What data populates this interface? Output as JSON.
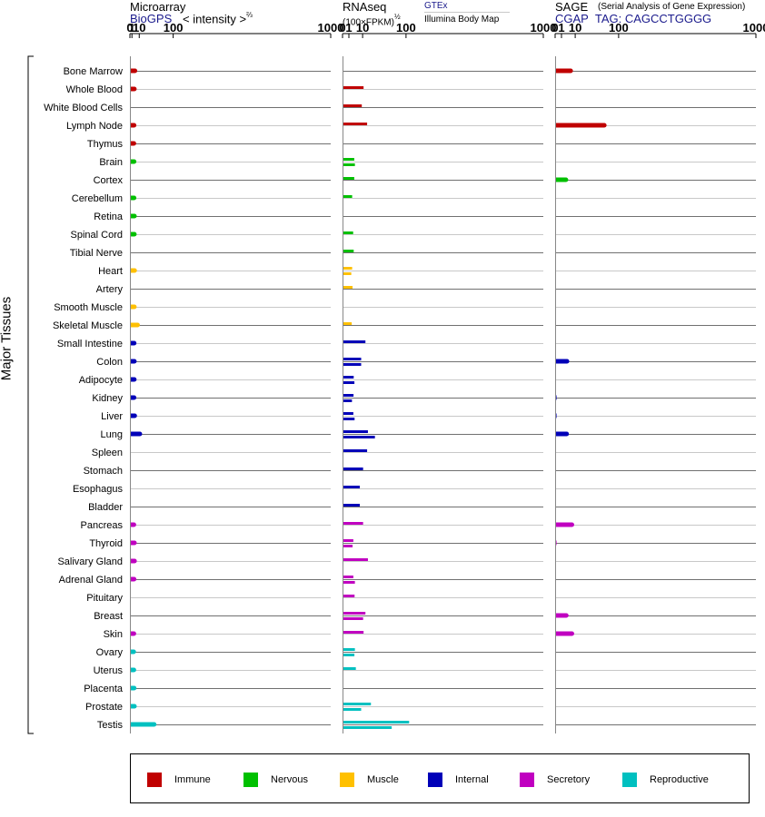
{
  "headers": {
    "microarray": {
      "title": "Microarray",
      "source": "BioGPS",
      "metric_pre": "< intensity >",
      "metric_exp": "⅔"
    },
    "rnaseq": {
      "title": "RNAseq",
      "metric_pre": "(100×FPKM)",
      "metric_exp": "½",
      "source1": "GTEx",
      "source2": "Illumina Body Map"
    },
    "sage": {
      "title": "SAGE",
      "subtitle": "(Serial Analysis of Gene Expression)",
      "source": "CGAP",
      "tag": "TAG: CAGCCTGGGG"
    }
  },
  "y_axis_label": "Major Tissues",
  "legend": [
    {
      "label": "Immune",
      "color": "#c00000"
    },
    {
      "label": "Nervous",
      "color": "#00c000"
    },
    {
      "label": "Muscle",
      "color": "#ffc000"
    },
    {
      "label": "Internal",
      "color": "#0000b8"
    },
    {
      "label": "Secretory",
      "color": "#c000c0"
    },
    {
      "label": "Reproductive",
      "color": "#00c0c0"
    }
  ],
  "chart_data": {
    "type": "bar",
    "orientation": "horizontal",
    "grid": true,
    "panels": [
      {
        "id": "microarray",
        "x_ticks": [
          0,
          1,
          10,
          100,
          1000
        ],
        "xlim": [
          0,
          1000
        ]
      },
      {
        "id": "rnaseq",
        "x_ticks": [
          0,
          1,
          10,
          100,
          1000
        ],
        "xlim": [
          0,
          1000
        ]
      },
      {
        "id": "sage",
        "x_ticks": [
          0,
          1,
          10,
          100,
          1000
        ],
        "xlim": [
          0,
          1000
        ]
      }
    ],
    "tissues": [
      {
        "name": "Bone Marrow",
        "group": "Immune",
        "microarray": 4.0,
        "rnaseq": [],
        "sage": [
          6
        ]
      },
      {
        "name": "Whole Blood",
        "group": "Immune",
        "microarray": 3.3,
        "rnaseq": [
          11
        ],
        "sage": []
      },
      {
        "name": "White Blood Cells",
        "group": "Immune",
        "microarray": 0,
        "rnaseq": [
          9.2
        ],
        "sage": []
      },
      {
        "name": "Lymph Node",
        "group": "Immune",
        "microarray": 3.0,
        "rnaseq": [
          15
        ],
        "sage": [
          60
        ]
      },
      {
        "name": "Thymus",
        "group": "Immune",
        "microarray": 2.8,
        "rnaseq": [],
        "sage": []
      },
      {
        "name": "Brain",
        "group": "Nervous",
        "microarray": 3.0,
        "rnaseq": [
          3.4,
          3.8
        ],
        "sage": [
          0.02
        ]
      },
      {
        "name": "Cortex",
        "group": "Nervous",
        "microarray": 0,
        "rnaseq": [
          3.4
        ],
        "sage": [
          2.9
        ]
      },
      {
        "name": "Cerebellum",
        "group": "Nervous",
        "microarray": 3.0,
        "rnaseq": [
          2.3
        ],
        "sage": [
          0.02
        ]
      },
      {
        "name": "Retina",
        "group": "Nervous",
        "microarray": 3.4,
        "rnaseq": [],
        "sage": [
          0.02
        ]
      },
      {
        "name": "Spinal Cord",
        "group": "Nervous",
        "microarray": 3.3,
        "rnaseq": [
          2.8
        ],
        "sage": [
          0.02
        ]
      },
      {
        "name": "Tibial Nerve",
        "group": "Nervous",
        "microarray": 0,
        "rnaseq": [
          3.1
        ],
        "sage": []
      },
      {
        "name": "Heart",
        "group": "Muscle",
        "microarray": 3.6,
        "rnaseq": [
          2.3,
          1.9
        ],
        "sage": [
          0.01
        ]
      },
      {
        "name": "Artery",
        "group": "Muscle",
        "microarray": 0,
        "rnaseq": [
          2.5
        ],
        "sage": []
      },
      {
        "name": "Smooth Muscle",
        "group": "Muscle",
        "microarray": 3.3,
        "rnaseq": [],
        "sage": []
      },
      {
        "name": "Skeletal Muscle",
        "group": "Muscle",
        "microarray": 7.5,
        "rnaseq": [
          2.1
        ],
        "sage": [
          0.01
        ]
      },
      {
        "name": "Small Intestine",
        "group": "Internal",
        "microarray": 3.1,
        "rnaseq": [
          13
        ],
        "sage": []
      },
      {
        "name": "Colon",
        "group": "Internal",
        "microarray": 3.3,
        "rnaseq": [
          8.6,
          8.6
        ],
        "sage": [
          3.5
        ]
      },
      {
        "name": "Adipocyte",
        "group": "Internal",
        "microarray": 3.2,
        "rnaseq": [
          3.1,
          3.5
        ],
        "sage": []
      },
      {
        "name": "Kidney",
        "group": "Internal",
        "microarray": 3.0,
        "rnaseq": [
          3.0,
          2.2
        ],
        "sage": [
          0.05
        ]
      },
      {
        "name": "Liver",
        "group": "Internal",
        "microarray": 3.7,
        "rnaseq": [
          2.9,
          3.6
        ],
        "sage": [
          0.05
        ]
      },
      {
        "name": "Lung",
        "group": "Internal",
        "microarray": 11,
        "rnaseq": [
          16,
          26
        ],
        "sage": [
          3.3
        ]
      },
      {
        "name": "Spleen",
        "group": "Internal",
        "microarray": 0,
        "rnaseq": [
          15
        ],
        "sage": []
      },
      {
        "name": "Stomach",
        "group": "Internal",
        "microarray": 0,
        "rnaseq": [
          10.5
        ],
        "sage": []
      },
      {
        "name": "Esophagus",
        "group": "Internal",
        "microarray": 0,
        "rnaseq": [
          7.4
        ],
        "sage": []
      },
      {
        "name": "Bladder",
        "group": "Internal",
        "microarray": 0,
        "rnaseq": [
          7.4
        ],
        "sage": []
      },
      {
        "name": "Pancreas",
        "group": "Secretory",
        "microarray": 2.8,
        "rnaseq": [
          10.5
        ],
        "sage": [
          7
        ]
      },
      {
        "name": "Thyroid",
        "group": "Secretory",
        "microarray": 3.4,
        "rnaseq": [
          2.9,
          2.5
        ],
        "sage": [
          0.05
        ]
      },
      {
        "name": "Salivary Gland",
        "group": "Secretory",
        "microarray": 3.5,
        "rnaseq": [
          16
        ],
        "sage": []
      },
      {
        "name": "Adrenal Gland",
        "group": "Secretory",
        "microarray": 3.0,
        "rnaseq": [
          2.9,
          3.8
        ],
        "sage": []
      },
      {
        "name": "Pituitary",
        "group": "Secretory",
        "microarray": 0,
        "rnaseq": [
          3.6
        ],
        "sage": []
      },
      {
        "name": "Breast",
        "group": "Secretory",
        "microarray": 0,
        "rnaseq": [
          13,
          10.5
        ],
        "sage": [
          3.1
        ]
      },
      {
        "name": "Skin",
        "group": "Secretory",
        "microarray": 2.8,
        "rnaseq": [
          11
        ],
        "sage": [
          7
        ]
      },
      {
        "name": "Ovary",
        "group": "Reproductive",
        "microarray": 2.6,
        "rnaseq": [
          3.8,
          3.5
        ],
        "sage": []
      },
      {
        "name": "Uterus",
        "group": "Reproductive",
        "microarray": 2.8,
        "rnaseq": [
          4.4
        ],
        "sage": []
      },
      {
        "name": "Placenta",
        "group": "Reproductive",
        "microarray": 3.1,
        "rnaseq": [],
        "sage": [
          0.02
        ]
      },
      {
        "name": "Prostate",
        "group": "Reproductive",
        "microarray": 3.4,
        "rnaseq": [
          20,
          8.6
        ],
        "sage": [
          0.02
        ]
      },
      {
        "name": "Testis",
        "group": "Reproductive",
        "microarray": 42,
        "rnaseq": [
          110,
          60
        ],
        "sage": []
      }
    ]
  }
}
